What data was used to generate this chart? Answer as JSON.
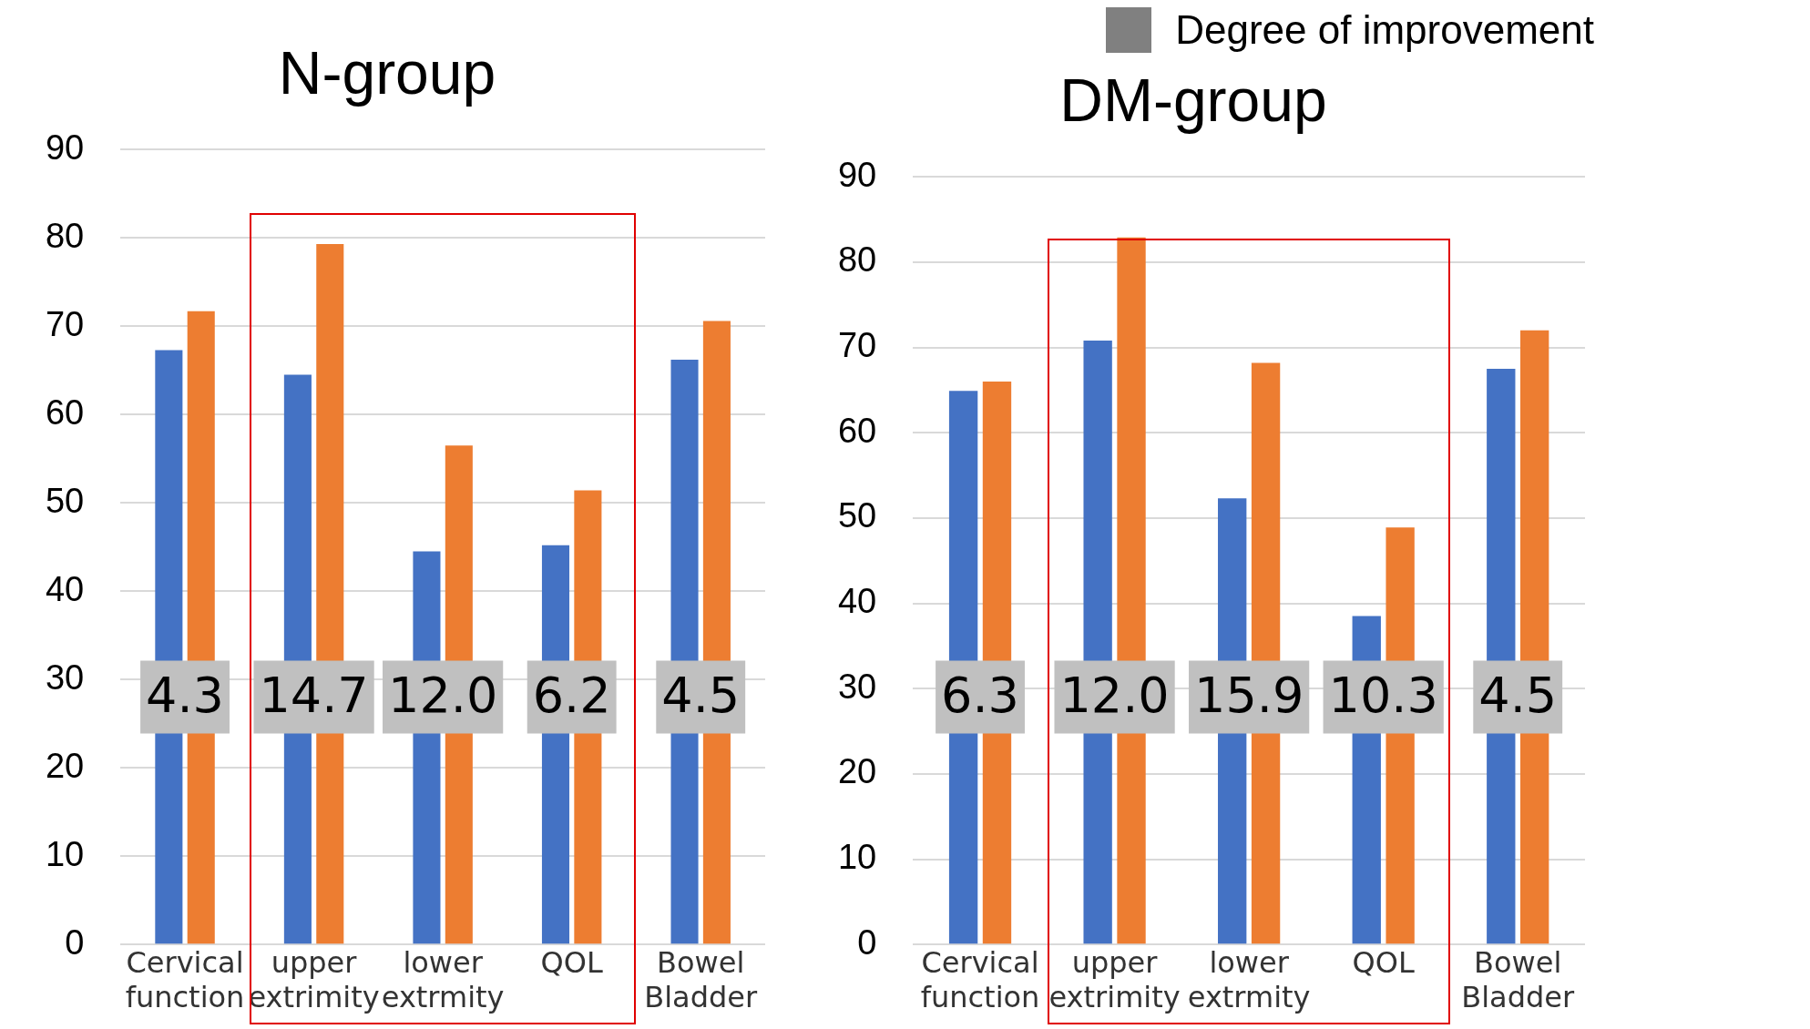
{
  "chart_data": [
    {
      "type": "bar",
      "title": "N-group",
      "categories": [
        "Cervical function",
        "upper extrimity",
        "lower extrmity",
        "QOL",
        "Bowel Bladder"
      ],
      "series": [
        {
          "color": "#4472c4",
          "values": [
            67.3,
            64.5,
            44.5,
            45.2,
            66.2
          ]
        },
        {
          "color": "#ed7d31",
          "values": [
            71.7,
            79.3,
            56.5,
            51.4,
            70.6
          ]
        }
      ],
      "ylim": [
        0,
        90
      ],
      "yticks": [
        0,
        10,
        20,
        30,
        40,
        50,
        60,
        70,
        80,
        90
      ],
      "grid": "y",
      "annotations": [
        {
          "text": "4.3",
          "x": "Cervical function",
          "y": 28
        },
        {
          "text": "14.7",
          "x": "upper extrimity",
          "y": 28
        },
        {
          "text": "12.0",
          "x": "lower extrmity",
          "y": 28
        },
        {
          "text": "6.2",
          "x": "QOL",
          "y": 28
        },
        {
          "text": "4.5",
          "x": "Bowel Bladder",
          "y": 28
        }
      ]
    },
    {
      "type": "bar",
      "title": "DM-group",
      "legend_title": "Degree of improvement",
      "categories": [
        "Cervical function",
        "upper extrimity",
        "lower extrmity",
        "QOL",
        "Bowel Bladder"
      ],
      "series": [
        {
          "color": "#4472c4",
          "values": [
            64.9,
            70.8,
            52.3,
            38.5,
            67.5
          ]
        },
        {
          "color": "#ed7d31",
          "values": [
            66.0,
            82.9,
            68.2,
            48.9,
            72.0
          ]
        }
      ],
      "ylim": [
        0,
        90
      ],
      "yticks": [
        0,
        10,
        20,
        30,
        40,
        50,
        60,
        70,
        80,
        90
      ],
      "grid": "y",
      "annotations": [
        {
          "text": "6.3",
          "x": "Cervical function",
          "y": 29
        },
        {
          "text": "12.0",
          "x": "upper extrimity",
          "y": 29
        },
        {
          "text": "15.9",
          "x": "lower extrmity",
          "y": 29
        },
        {
          "text": "10.3",
          "x": "QOL",
          "y": 29
        },
        {
          "text": "4.5",
          "x": "Bowel Bladder",
          "y": 29
        }
      ]
    }
  ]
}
